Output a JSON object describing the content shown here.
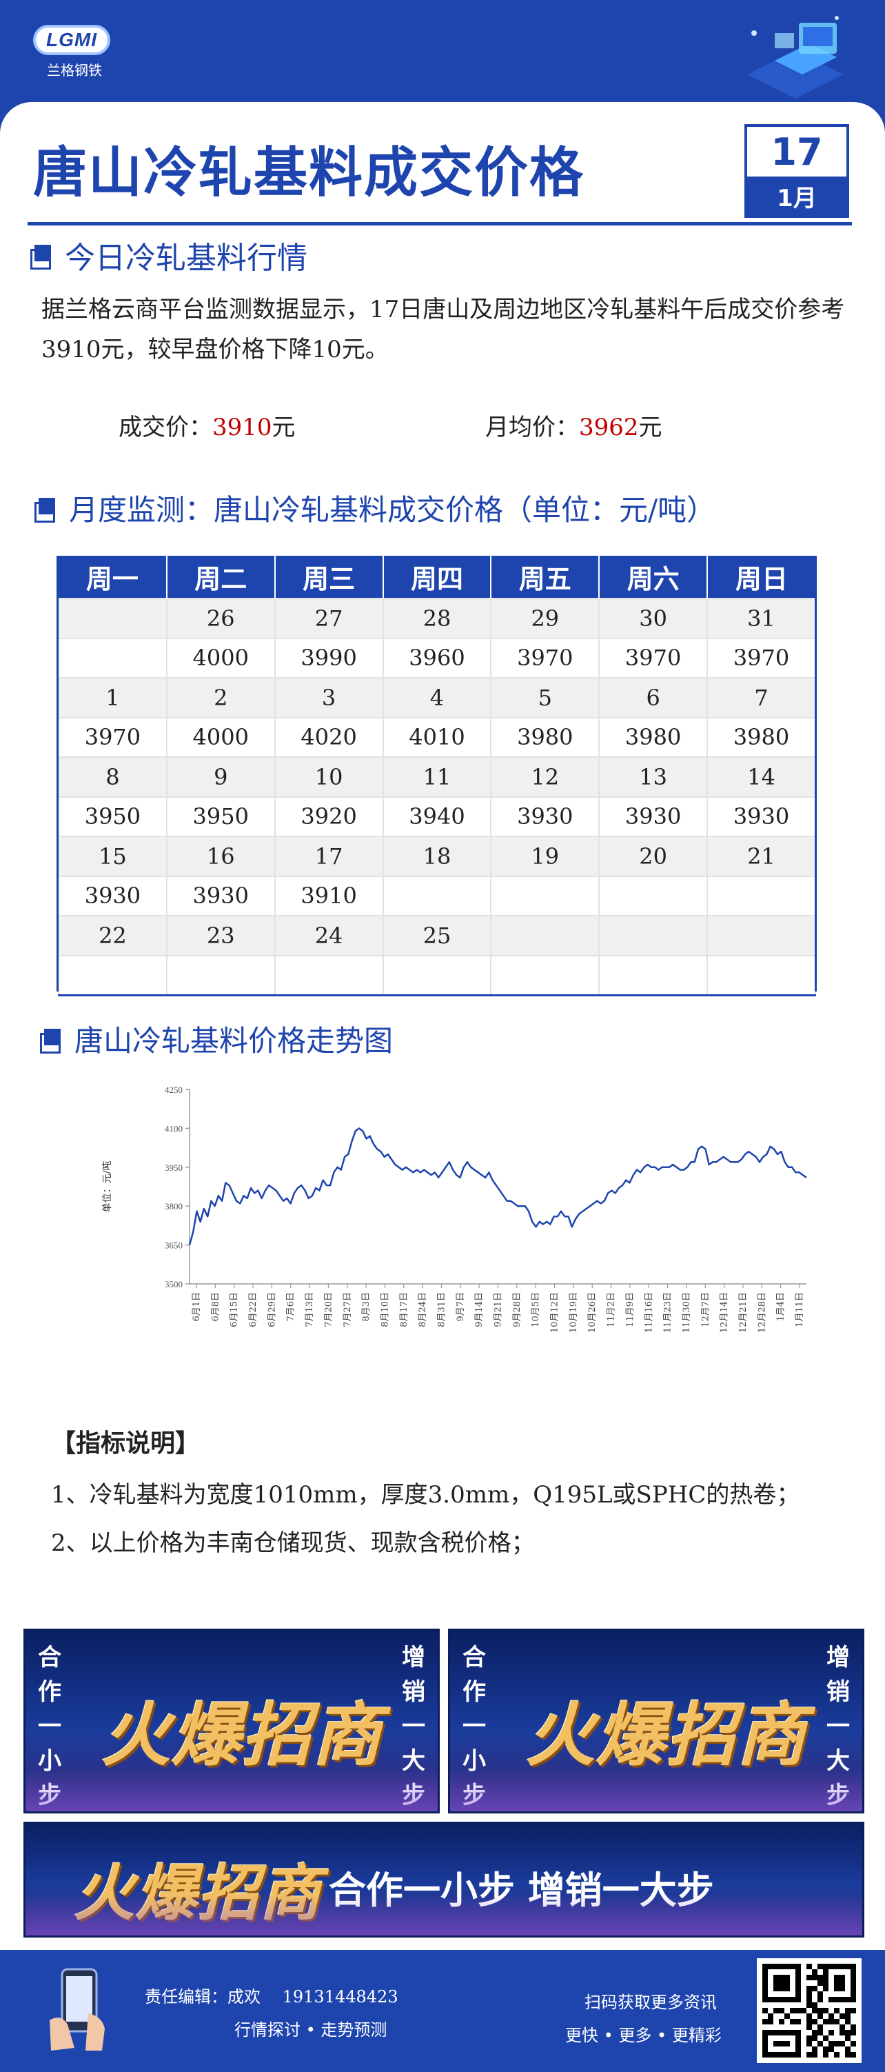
{
  "brand": {
    "logo_letters": "LGMI",
    "logo_caption": "兰格钢铁"
  },
  "header": {
    "title": "唐山冷轧基料成交价格",
    "day": "17",
    "month": "1月"
  },
  "section_today": {
    "heading": "今日冷轧基料行情",
    "paragraph": "据兰格云商平台监测数据显示，17日唐山及周边地区冷轧基料午后成交价参考3910元，较早盘价格下降10元。",
    "deal_label": "成交价：",
    "deal_value": "3910",
    "deal_unit": "元",
    "avg_label": "月均价：",
    "avg_value": "3962",
    "avg_unit": "元"
  },
  "section_month": {
    "heading": "月度监测：唐山冷轧基料成交价格（单位：元/吨）",
    "weekdays": [
      "周一",
      "周二",
      "周三",
      "周四",
      "周五",
      "周六",
      "周日"
    ],
    "rows": [
      {
        "kind": "date",
        "cells": [
          {
            "t": ""
          },
          {
            "t": "26"
          },
          {
            "t": "27"
          },
          {
            "t": "28"
          },
          {
            "t": "29"
          },
          {
            "t": "30"
          },
          {
            "t": "31"
          }
        ]
      },
      {
        "kind": "price",
        "cells": [
          {
            "t": ""
          },
          {
            "t": "4000",
            "c": "red"
          },
          {
            "t": "3990",
            "c": "green"
          },
          {
            "t": "3960",
            "c": "green"
          },
          {
            "t": "3970",
            "c": "red"
          },
          {
            "t": "3970"
          },
          {
            "t": "3970"
          }
        ]
      },
      {
        "kind": "date",
        "cells": [
          {
            "t": "1"
          },
          {
            "t": "2"
          },
          {
            "t": "3"
          },
          {
            "t": "4"
          },
          {
            "t": "5"
          },
          {
            "t": "6"
          },
          {
            "t": "7"
          }
        ]
      },
      {
        "kind": "price",
        "cells": [
          {
            "t": "3970"
          },
          {
            "t": "4000",
            "c": "red"
          },
          {
            "t": "4020",
            "c": "red"
          },
          {
            "t": "4010",
            "c": "green"
          },
          {
            "t": "3980",
            "c": "green"
          },
          {
            "t": "3980"
          },
          {
            "t": "3980"
          }
        ]
      },
      {
        "kind": "date",
        "cells": [
          {
            "t": "8"
          },
          {
            "t": "9"
          },
          {
            "t": "10"
          },
          {
            "t": "11"
          },
          {
            "t": "12"
          },
          {
            "t": "13"
          },
          {
            "t": "14"
          }
        ]
      },
      {
        "kind": "price",
        "cells": [
          {
            "t": "3950",
            "c": "green"
          },
          {
            "t": "3950"
          },
          {
            "t": "3920",
            "c": "green"
          },
          {
            "t": "3940",
            "c": "red"
          },
          {
            "t": "3930",
            "c": "green"
          },
          {
            "t": "3930"
          },
          {
            "t": "3930"
          }
        ]
      },
      {
        "kind": "date",
        "cells": [
          {
            "t": "15"
          },
          {
            "t": "16"
          },
          {
            "t": "17"
          },
          {
            "t": "18"
          },
          {
            "t": "19"
          },
          {
            "t": "20"
          },
          {
            "t": "21"
          }
        ]
      },
      {
        "kind": "price",
        "cells": [
          {
            "t": "3930"
          },
          {
            "t": "3930"
          },
          {
            "t": "3910",
            "c": "green"
          },
          {
            "t": ""
          },
          {
            "t": ""
          },
          {
            "t": ""
          },
          {
            "t": ""
          }
        ]
      },
      {
        "kind": "date",
        "cells": [
          {
            "t": "22"
          },
          {
            "t": "23"
          },
          {
            "t": "24"
          },
          {
            "t": "25"
          },
          {
            "t": ""
          },
          {
            "t": ""
          },
          {
            "t": ""
          }
        ]
      },
      {
        "kind": "price",
        "cells": [
          {
            "t": ""
          },
          {
            "t": ""
          },
          {
            "t": ""
          },
          {
            "t": ""
          },
          {
            "t": ""
          },
          {
            "t": ""
          },
          {
            "t": ""
          }
        ]
      }
    ]
  },
  "section_chart": {
    "heading": "唐山冷轧基料价格走势图"
  },
  "chart_data": {
    "type": "line",
    "title": "",
    "xlabel": "",
    "ylabel": "单位：元/吨",
    "ylim": [
      3500,
      4250
    ],
    "yticks": [
      3500,
      3650,
      3800,
      3950,
      4100,
      4250
    ],
    "xticks": [
      "6月1日",
      "6月8日",
      "6月15日",
      "6月22日",
      "6月29日",
      "7月6日",
      "7月13日",
      "7月20日",
      "7月27日",
      "8月3日",
      "8月10日",
      "8月17日",
      "8月24日",
      "8月31日",
      "9月7日",
      "9月14日",
      "9月21日",
      "9月28日",
      "10月5日",
      "10月12日",
      "10月19日",
      "10月26日",
      "11月2日",
      "11月9日",
      "11月16日",
      "11月23日",
      "11月30日",
      "12月7日",
      "12月14日",
      "12月21日",
      "12月28日",
      "1月4日",
      "1月11日"
    ],
    "grid": false,
    "legend": "none",
    "color": "#1e44ae",
    "series": [
      {
        "values": [
          3650,
          3700,
          3780,
          3740,
          3790,
          3760,
          3820,
          3800,
          3840,
          3820,
          3890,
          3880,
          3850,
          3820,
          3810,
          3840,
          3830,
          3870,
          3850,
          3860,
          3830,
          3860,
          3880,
          3870,
          3860,
          3840,
          3820,
          3830,
          3810,
          3850,
          3870,
          3880,
          3860,
          3830,
          3840,
          3870,
          3860,
          3900,
          3880,
          3880,
          3930,
          3950,
          3940,
          3990,
          4000,
          4050,
          4090,
          4100,
          4090,
          4060,
          4070,
          4040,
          4020,
          4010,
          3990,
          4000,
          3980,
          3960,
          3950,
          3940,
          3950,
          3940,
          3930,
          3940,
          3930,
          3940,
          3930,
          3920,
          3930,
          3910,
          3930,
          3950,
          3970,
          3940,
          3920,
          3910,
          3950,
          3970,
          3950,
          3940,
          3930,
          3920,
          3910,
          3930,
          3900,
          3880,
          3860,
          3840,
          3820,
          3820,
          3810,
          3800,
          3800,
          3800,
          3780,
          3740,
          3720,
          3740,
          3730,
          3740,
          3730,
          3760,
          3760,
          3780,
          3760,
          3760,
          3720,
          3750,
          3770,
          3780,
          3790,
          3800,
          3810,
          3820,
          3810,
          3820,
          3850,
          3860,
          3850,
          3870,
          3880,
          3900,
          3890,
          3920,
          3940,
          3930,
          3950,
          3960,
          3950,
          3950,
          3940,
          3950,
          3950,
          3950,
          3960,
          3950,
          3940,
          3940,
          3950,
          3970,
          3970,
          4020,
          4030,
          4020,
          3960,
          3970,
          3970,
          3980,
          3990,
          3980,
          3970,
          3970,
          3970,
          3980,
          4000,
          4010,
          4000,
          3990,
          3970,
          3990,
          4000,
          4030,
          4020,
          4000,
          4010,
          3970,
          3950,
          3950,
          3930,
          3930,
          3920,
          3910
        ]
      }
    ]
  },
  "notes": {
    "title": "【指标说明】",
    "items": [
      "1、冷轧基料为宽度1010mm，厚度3.0mm，Q195L或SPHC的热卷；",
      "2、以上价格为丰南仓储现货、现款含税价格；"
    ]
  },
  "ads": {
    "left_side": "合作一小步",
    "right_side": "增销一大步",
    "big_text": "火爆招商",
    "slogan": "合作一小步  增销一大步"
  },
  "footer": {
    "editor": "责任编辑：成欢　 19131448423",
    "tagline": "行情探讨 • 走势预测",
    "scan": "扫码获取更多资讯",
    "more": "更快 • 更多 • 更精彩"
  }
}
